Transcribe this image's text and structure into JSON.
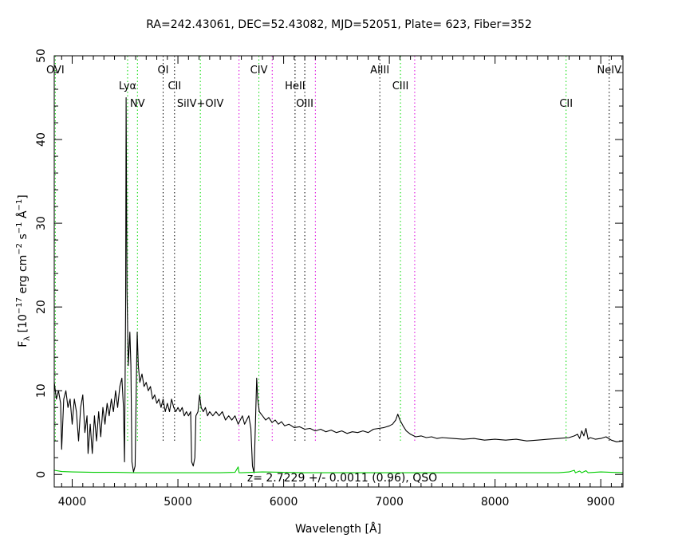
{
  "chart_data": {
    "type": "line",
    "title": "RA=242.43061, DEC=52.43082, MJD=52051, Plate=  623, Fiber=352",
    "xlabel": "Wavelength [Å]",
    "ylabel_parts": {
      "f": "F",
      "lambda": "λ",
      "a": " [10",
      "exp1": "−17",
      "b": " erg cm",
      "exp2": "−2",
      "c": " s",
      "exp3": "−1",
      "d": " Å",
      "exp4": "−1",
      "e": "]"
    },
    "xlim": [
      3830,
      9210
    ],
    "ylim": [
      -1.5,
      50
    ],
    "xticks": [
      4000,
      5000,
      6000,
      7000,
      8000,
      9000
    ],
    "yticks": [
      0,
      10,
      20,
      30,
      40,
      50
    ],
    "annotation": "z=  2.7229 +/-  0.0011 (0.96), QSO",
    "colors": {
      "flux": "#000000",
      "error": "#00cc00",
      "green_line": "#00dd00",
      "magenta_line": "#dd00dd",
      "black_line": "#000000"
    },
    "series": [
      {
        "role": "flux",
        "points": [
          [
            3830,
            11
          ],
          [
            3850,
            9
          ],
          [
            3870,
            10
          ],
          [
            3890,
            8.5
          ],
          [
            3900,
            3
          ],
          [
            3920,
            9
          ],
          [
            3940,
            10
          ],
          [
            3960,
            8
          ],
          [
            3980,
            9
          ],
          [
            4000,
            6
          ],
          [
            4020,
            9
          ],
          [
            4040,
            7.5
          ],
          [
            4060,
            4
          ],
          [
            4080,
            8
          ],
          [
            4100,
            9.5
          ],
          [
            4120,
            5
          ],
          [
            4140,
            7
          ],
          [
            4150,
            2.5
          ],
          [
            4170,
            6
          ],
          [
            4190,
            2.5
          ],
          [
            4210,
            7
          ],
          [
            4230,
            4
          ],
          [
            4250,
            7.5
          ],
          [
            4270,
            4.5
          ],
          [
            4290,
            8
          ],
          [
            4310,
            6
          ],
          [
            4330,
            8.5
          ],
          [
            4350,
            7
          ],
          [
            4370,
            9
          ],
          [
            4390,
            7.5
          ],
          [
            4410,
            10
          ],
          [
            4430,
            8
          ],
          [
            4450,
            10.5
          ],
          [
            4470,
            11.5
          ],
          [
            4485,
            8
          ],
          [
            4495,
            1.5
          ],
          [
            4505,
            20
          ],
          [
            4510,
            45
          ],
          [
            4518,
            22
          ],
          [
            4530,
            13
          ],
          [
            4545,
            17
          ],
          [
            4555,
            13
          ],
          [
            4565,
            1.5
          ],
          [
            4580,
            0.3
          ],
          [
            4595,
            1
          ],
          [
            4608,
            12
          ],
          [
            4615,
            17
          ],
          [
            4625,
            13
          ],
          [
            4640,
            11
          ],
          [
            4660,
            12
          ],
          [
            4680,
            10.5
          ],
          [
            4700,
            11
          ],
          [
            4720,
            10
          ],
          [
            4740,
            10.5
          ],
          [
            4760,
            9
          ],
          [
            4780,
            9.5
          ],
          [
            4800,
            8.5
          ],
          [
            4820,
            9
          ],
          [
            4840,
            8
          ],
          [
            4860,
            9
          ],
          [
            4880,
            7.5
          ],
          [
            4900,
            8.5
          ],
          [
            4920,
            7.5
          ],
          [
            4940,
            9
          ],
          [
            4960,
            8
          ],
          [
            4980,
            7.5
          ],
          [
            5000,
            8
          ],
          [
            5020,
            7.5
          ],
          [
            5040,
            8
          ],
          [
            5060,
            7
          ],
          [
            5080,
            7.5
          ],
          [
            5100,
            7
          ],
          [
            5120,
            7.5
          ],
          [
            5130,
            1.5
          ],
          [
            5145,
            1
          ],
          [
            5160,
            2
          ],
          [
            5170,
            7
          ],
          [
            5190,
            7.5
          ],
          [
            5205,
            9.5
          ],
          [
            5220,
            8
          ],
          [
            5240,
            7.5
          ],
          [
            5260,
            8
          ],
          [
            5280,
            7
          ],
          [
            5300,
            7.5
          ],
          [
            5330,
            7
          ],
          [
            5360,
            7.5
          ],
          [
            5390,
            7
          ],
          [
            5420,
            7.5
          ],
          [
            5450,
            6.5
          ],
          [
            5480,
            7
          ],
          [
            5510,
            6.5
          ],
          [
            5540,
            7
          ],
          [
            5570,
            6
          ],
          [
            5590,
            6.5
          ],
          [
            5610,
            7
          ],
          [
            5630,
            6
          ],
          [
            5650,
            6.5
          ],
          [
            5670,
            7
          ],
          [
            5690,
            5.5
          ],
          [
            5705,
            1
          ],
          [
            5720,
            0.2
          ],
          [
            5735,
            7
          ],
          [
            5745,
            11.5
          ],
          [
            5755,
            9
          ],
          [
            5770,
            7.5
          ],
          [
            5800,
            7
          ],
          [
            5830,
            6.5
          ],
          [
            5860,
            6.8
          ],
          [
            5890,
            6.2
          ],
          [
            5920,
            6.5
          ],
          [
            5950,
            6
          ],
          [
            5980,
            6.3
          ],
          [
            6010,
            5.8
          ],
          [
            6050,
            6
          ],
          [
            6100,
            5.6
          ],
          [
            6150,
            5.7
          ],
          [
            6200,
            5.4
          ],
          [
            6250,
            5.5
          ],
          [
            6300,
            5.2
          ],
          [
            6350,
            5.4
          ],
          [
            6400,
            5.1
          ],
          [
            6450,
            5.3
          ],
          [
            6500,
            5
          ],
          [
            6550,
            5.2
          ],
          [
            6600,
            4.9
          ],
          [
            6650,
            5.1
          ],
          [
            6700,
            5
          ],
          [
            6750,
            5.2
          ],
          [
            6800,
            5
          ],
          [
            6850,
            5.4
          ],
          [
            6900,
            5.5
          ],
          [
            6950,
            5.6
          ],
          [
            7000,
            5.8
          ],
          [
            7030,
            6
          ],
          [
            7060,
            6.5
          ],
          [
            7080,
            7.2
          ],
          [
            7100,
            6.5
          ],
          [
            7130,
            5.8
          ],
          [
            7160,
            5.2
          ],
          [
            7200,
            4.8
          ],
          [
            7250,
            4.5
          ],
          [
            7300,
            4.6
          ],
          [
            7350,
            4.4
          ],
          [
            7400,
            4.5
          ],
          [
            7450,
            4.3
          ],
          [
            7500,
            4.4
          ],
          [
            7600,
            4.3
          ],
          [
            7700,
            4.2
          ],
          [
            7800,
            4.3
          ],
          [
            7900,
            4.1
          ],
          [
            8000,
            4.2
          ],
          [
            8100,
            4.1
          ],
          [
            8200,
            4.2
          ],
          [
            8300,
            4
          ],
          [
            8400,
            4.1
          ],
          [
            8500,
            4.2
          ],
          [
            8600,
            4.3
          ],
          [
            8700,
            4.4
          ],
          [
            8750,
            4.6
          ],
          [
            8780,
            4.8
          ],
          [
            8800,
            4.3
          ],
          [
            8820,
            5.2
          ],
          [
            8840,
            4.6
          ],
          [
            8860,
            5.5
          ],
          [
            8880,
            4.2
          ],
          [
            8900,
            4.4
          ],
          [
            8950,
            4.2
          ],
          [
            9000,
            4.3
          ],
          [
            9050,
            4.5
          ],
          [
            9100,
            4.1
          ],
          [
            9150,
            3.9
          ],
          [
            9210,
            4
          ]
        ]
      },
      {
        "role": "error",
        "points": [
          [
            3830,
            0.5
          ],
          [
            3900,
            0.35
          ],
          [
            4000,
            0.3
          ],
          [
            4200,
            0.25
          ],
          [
            4400,
            0.25
          ],
          [
            4600,
            0.2
          ],
          [
            4800,
            0.2
          ],
          [
            5000,
            0.2
          ],
          [
            5200,
            0.2
          ],
          [
            5400,
            0.2
          ],
          [
            5540,
            0.25
          ],
          [
            5570,
            0.9
          ],
          [
            5578,
            0.2
          ],
          [
            5600,
            0.2
          ],
          [
            5800,
            0.3
          ],
          [
            6000,
            0.25
          ],
          [
            6200,
            0.2
          ],
          [
            6400,
            0.2
          ],
          [
            6600,
            0.2
          ],
          [
            6800,
            0.2
          ],
          [
            7000,
            0.2
          ],
          [
            7200,
            0.2
          ],
          [
            7400,
            0.2
          ],
          [
            7600,
            0.2
          ],
          [
            7800,
            0.2
          ],
          [
            8000,
            0.2
          ],
          [
            8200,
            0.2
          ],
          [
            8400,
            0.2
          ],
          [
            8600,
            0.2
          ],
          [
            8700,
            0.3
          ],
          [
            8750,
            0.5
          ],
          [
            8760,
            0.2
          ],
          [
            8800,
            0.4
          ],
          [
            8820,
            0.2
          ],
          [
            8860,
            0.45
          ],
          [
            8880,
            0.2
          ],
          [
            9000,
            0.3
          ],
          [
            9100,
            0.25
          ],
          [
            9210,
            0.2
          ]
        ]
      }
    ],
    "line_markers": [
      {
        "label": "OVI",
        "x": 3840,
        "color": "green",
        "label_row": 1
      },
      {
        "label": "Lyα",
        "x": 4524,
        "color": "green",
        "label_row": 2
      },
      {
        "label": "NV",
        "x": 4617,
        "color": "green",
        "label_row": 3
      },
      {
        "label": "OI",
        "x": 4860,
        "color": "black",
        "label_row": 1
      },
      {
        "label": "CII",
        "x": 4968,
        "color": "black",
        "label_row": 2
      },
      {
        "label": "SiIV+OIV",
        "x": 5212,
        "color": "green",
        "label_row": 3
      },
      {
        "label": "",
        "x": 5578,
        "color": "magenta",
        "label_row": 0
      },
      {
        "label": "CIV",
        "x": 5766,
        "color": "green",
        "label_row": 1
      },
      {
        "label": "",
        "x": 5892,
        "color": "magenta",
        "label_row": 0
      },
      {
        "label": "HeII",
        "x": 6108,
        "color": "black",
        "label_row": 2
      },
      {
        "label": "OIII",
        "x": 6200,
        "color": "black",
        "label_row": 3
      },
      {
        "label": "",
        "x": 6300,
        "color": "magenta",
        "label_row": 0
      },
      {
        "label": "AlIII",
        "x": 6910,
        "color": "black",
        "label_row": 1
      },
      {
        "label": "CIII",
        "x": 7105,
        "color": "green",
        "label_row": 2
      },
      {
        "label": "",
        "x": 7240,
        "color": "magenta",
        "label_row": 0
      },
      {
        "label": "CII",
        "x": 8672,
        "color": "green",
        "label_row": 3
      },
      {
        "label": "NeIV",
        "x": 9080,
        "color": "black",
        "label_row": 1
      }
    ]
  }
}
